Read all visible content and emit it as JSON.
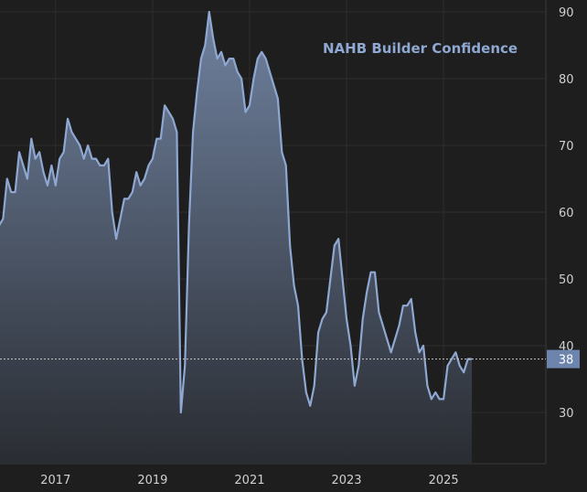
{
  "chart_data": {
    "type": "area",
    "title": "NAHB Builder Confidence",
    "xlabel": "",
    "ylabel": "",
    "x_ticks": [
      "2017",
      "2019",
      "2021",
      "2023",
      "2025"
    ],
    "y_ticks": [
      30,
      40,
      50,
      60,
      70,
      80,
      90
    ],
    "ylim": [
      20,
      92
    ],
    "grid": true,
    "last_value_label": "38",
    "colors": {
      "background": "#1e1e1e",
      "line": "#8fa8d2",
      "grid": "#2e2e2e",
      "badge": "#6d84ad"
    },
    "series": [
      {
        "x": [
          "2016-05",
          "2016-06",
          "2016-07",
          "2016-08",
          "2016-09",
          "2016-10",
          "2016-11",
          "2016-12",
          "2017-01",
          "2017-02",
          "2017-03",
          "2017-04",
          "2017-05",
          "2017-06",
          "2017-07",
          "2017-08",
          "2017-09",
          "2017-10",
          "2017-11",
          "2017-12",
          "2018-01",
          "2018-02",
          "2018-03",
          "2018-04",
          "2018-05",
          "2018-06",
          "2018-07",
          "2018-08",
          "2018-09",
          "2018-10",
          "2018-11",
          "2018-12",
          "2019-01",
          "2019-02",
          "2019-03",
          "2019-04",
          "2019-05",
          "2019-06",
          "2019-07",
          "2019-08",
          "2019-09",
          "2019-10",
          "2019-11",
          "2019-12",
          "2020-01",
          "2020-02",
          "2020-03",
          "2020-04",
          "2020-05",
          "2020-06",
          "2020-07",
          "2020-08",
          "2020-09",
          "2020-10",
          "2020-11",
          "2020-12",
          "2021-01",
          "2021-02",
          "2021-03",
          "2021-04",
          "2021-05",
          "2021-06",
          "2021-07",
          "2021-08",
          "2021-09",
          "2021-10",
          "2021-11",
          "2021-12",
          "2022-01",
          "2022-02",
          "2022-03",
          "2022-04",
          "2022-05",
          "2022-06",
          "2022-07",
          "2022-08",
          "2022-09",
          "2022-10",
          "2022-11",
          "2022-12",
          "2023-01",
          "2023-02",
          "2023-03",
          "2023-04",
          "2023-05",
          "2023-06",
          "2023-07",
          "2023-08",
          "2023-09",
          "2023-10",
          "2023-11",
          "2023-12",
          "2024-01",
          "2024-02",
          "2024-03",
          "2024-04",
          "2024-05",
          "2024-06",
          "2024-07",
          "2024-08",
          "2024-09",
          "2024-10",
          "2024-11",
          "2024-12",
          "2025-01",
          "2025-02",
          "2025-03",
          "2025-04",
          "2025-05",
          "2025-06",
          "2025-07",
          "2025-08",
          "2025-09",
          "2025-10",
          "2025-11",
          "2025-12",
          "2026-01",
          "2026-02"
        ],
        "values": [
          58,
          59,
          65,
          63,
          63,
          69,
          67,
          65,
          71,
          68,
          69,
          66,
          64,
          67,
          64,
          68,
          69,
          74,
          72,
          71,
          70,
          68,
          70,
          68,
          68,
          67,
          67,
          68,
          60,
          56,
          59,
          62,
          62,
          63,
          66,
          64,
          65,
          67,
          68,
          71,
          71,
          76,
          75,
          74,
          72,
          30,
          37,
          58,
          72,
          78,
          83,
          85,
          90,
          86,
          83,
          84,
          82,
          83,
          83,
          81,
          80,
          75,
          76,
          80,
          83,
          84,
          83,
          81,
          79,
          77,
          69,
          67,
          55,
          49,
          46,
          38,
          33,
          31,
          34,
          42,
          44,
          45,
          50,
          55,
          56,
          50,
          44,
          40,
          34,
          37,
          44,
          48,
          51,
          51,
          45,
          43,
          41,
          39,
          41,
          43,
          46,
          46,
          47,
          42,
          39,
          40,
          34,
          32,
          33,
          32,
          32,
          37,
          38,
          39,
          37,
          36,
          38,
          38
        ]
      }
    ]
  }
}
